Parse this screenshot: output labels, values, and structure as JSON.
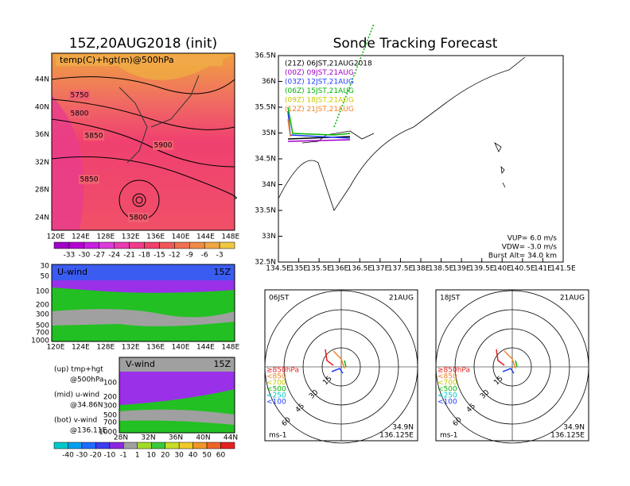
{
  "left_map": {
    "title": "15Z,20AUG2018 (init)",
    "label": "temp(C)+hgt(m)@500hPa",
    "yticks": [
      "44N",
      "40N",
      "36N",
      "32N",
      "28N",
      "24N"
    ],
    "xticks": [
      "120E",
      "124E",
      "128E",
      "132E",
      "136E",
      "140E",
      "144E",
      "148E"
    ],
    "contours": [
      "5750",
      "5800",
      "5850",
      "5900",
      "5850",
      "5800"
    ]
  },
  "temp_colorbar": {
    "labels": [
      "-33",
      "-30",
      "-27",
      "-24",
      "-21",
      "-18",
      "-15",
      "-12",
      "-9",
      "-6",
      "-3"
    ]
  },
  "u_wind": {
    "label": "U-wind",
    "time": "15Z",
    "yticks": [
      "30",
      "50",
      "100",
      "200",
      "300",
      "500",
      "700",
      "1000"
    ],
    "xticks": [
      "120E",
      "124E",
      "128E",
      "132E",
      "136E",
      "140E",
      "144E",
      "148E"
    ]
  },
  "notes": [
    "(up) tmp+hgt",
    "@500hPa",
    "(mid) u-wind",
    "@34.86N",
    "(bot) v-wind",
    "@136.11E"
  ],
  "v_wind": {
    "label": "V-wind",
    "time": "15Z",
    "yticks": [
      "100",
      "200",
      "300",
      "500",
      "700",
      "1000"
    ],
    "xticks": [
      "28N",
      "32N",
      "36N",
      "40N",
      "44N"
    ]
  },
  "wind_colorbar": {
    "labels": [
      "-40",
      "-30",
      "-20",
      "-10",
      "-1",
      "1",
      "10",
      "20",
      "30",
      "40",
      "50",
      "60"
    ]
  },
  "track": {
    "title": "Sonde Tracking Forecast",
    "legend": [
      {
        "text": "(21Z) 06JST,21AUG2018",
        "color": "#000000"
      },
      {
        "text": "(00Z) 09JST,21AUG",
        "color": "#a000c8"
      },
      {
        "text": "(03Z) 12JST,21AUG",
        "color": "#1e3cff"
      },
      {
        "text": "(06Z) 15JST,21AUG",
        "color": "#00b400"
      },
      {
        "text": "(09Z) 18JST,21AUG",
        "color": "#c8c800"
      },
      {
        "text": "(12Z) 21JST,21AUG",
        "color": "#f08228"
      }
    ],
    "yticks": [
      "36.5N",
      "36N",
      "35.5N",
      "35N",
      "34.5N",
      "34N",
      "33.5N",
      "33N",
      "32.5N"
    ],
    "xticks": [
      "134.5E",
      "135E",
      "135.5E",
      "136E",
      "136.5E",
      "137E",
      "137.5E",
      "138E",
      "138.5E",
      "139E",
      "139.5E",
      "140E",
      "140.5E",
      "141E",
      "141.5E"
    ],
    "info": [
      "VUP= 6.0 m/s",
      "VDW= -3.0 m/s",
      "Burst Alt= 34.0 km"
    ]
  },
  "hodographs": [
    {
      "time": "06JST",
      "date": "21AUG",
      "lat": "34.9N",
      "lon": "136.125E",
      "unit": "ms-1",
      "rings": [
        "15",
        "30",
        "45",
        "60"
      ],
      "levels": [
        {
          "text": "≥850hPa",
          "color": "#e62020"
        },
        {
          "text": "<850",
          "color": "#f08228"
        },
        {
          "text": "<700",
          "color": "#c8c800"
        },
        {
          "text": "<500",
          "color": "#00b400"
        },
        {
          "text": "<250",
          "color": "#00c8c8"
        },
        {
          "text": "<100",
          "color": "#1e3cff"
        }
      ]
    },
    {
      "time": "18JST",
      "date": "21AUG",
      "lat": "34.9N",
      "lon": "136.125E",
      "unit": "ms-1",
      "rings": [
        "15",
        "30",
        "45",
        "60"
      ],
      "levels": [
        {
          "text": "≥850hPa",
          "color": "#e62020"
        },
        {
          "text": "<850",
          "color": "#f08228"
        },
        {
          "text": "<700",
          "color": "#c8c800"
        },
        {
          "text": "<500",
          "color": "#00b400"
        },
        {
          "text": "<250",
          "color": "#00c8c8"
        },
        {
          "text": "<100",
          "color": "#1e3cff"
        }
      ]
    }
  ]
}
